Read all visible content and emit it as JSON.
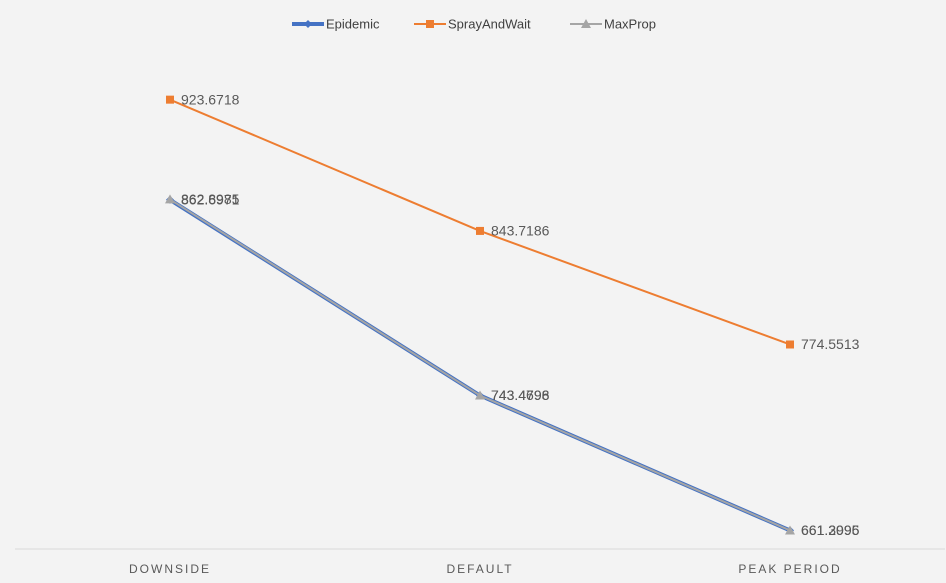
{
  "chart_data": {
    "type": "line",
    "categories": [
      "DOWNSIDE",
      "DEFAULT",
      "PEAK PERIOD"
    ],
    "series": [
      {
        "name": "Epidemic",
        "color": "#4472c4",
        "marker": "diamond",
        "values": [
          862.6971,
          743.4796,
          661.3095
        ]
      },
      {
        "name": "SprayAndWait",
        "color": "#ed7d31",
        "marker": "square",
        "values": [
          923.6718,
          843.7186,
          774.5513
        ]
      },
      {
        "name": "MaxProp",
        "color": "#a5a5a5",
        "marker": "triangle",
        "values": [
          862.8985,
          743.4698,
          661.2996
        ]
      }
    ],
    "ylim": [
      650,
      960
    ],
    "grid": false,
    "legend": "top"
  }
}
